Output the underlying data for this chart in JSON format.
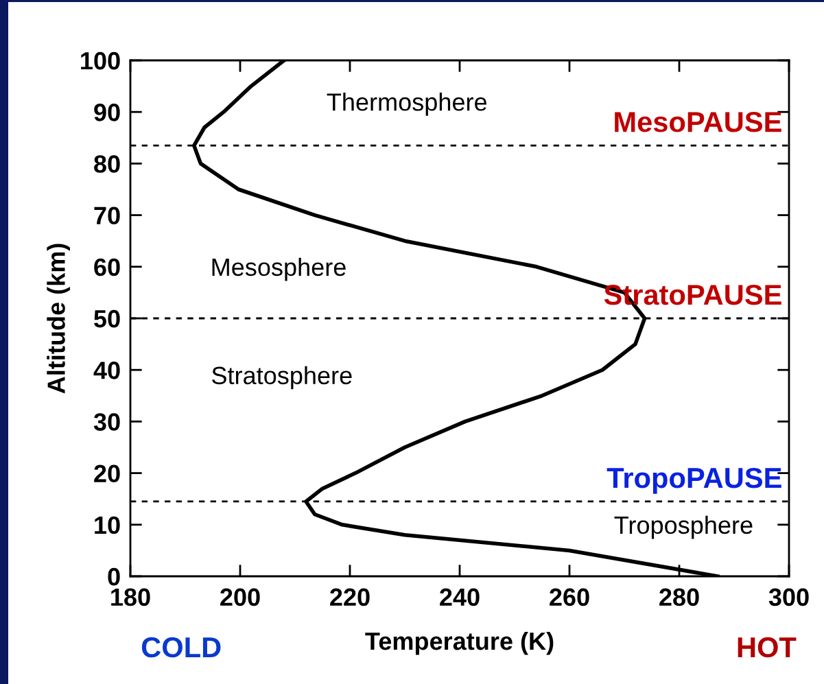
{
  "chart_data": {
    "type": "line",
    "xlabel": "Temperature (K)",
    "ylabel": "Altitude (km)",
    "xlim": [
      180,
      300
    ],
    "ylim": [
      0,
      100
    ],
    "xticks": [
      180,
      200,
      220,
      240,
      260,
      280,
      300
    ],
    "yticks": [
      0,
      10,
      20,
      30,
      40,
      50,
      60,
      70,
      80,
      90,
      100
    ],
    "series": [
      {
        "color": "#000000",
        "x": [
          287,
          260,
          230,
          218.6,
          213.6,
          212,
          215,
          221,
          230,
          241,
          255,
          266,
          272,
          273.7,
          270,
          254,
          230,
          213.6,
          199.7,
          192.8,
          191.6,
          193.5,
          197,
          202,
          208
        ],
        "values": [
          0,
          5,
          8,
          10,
          12,
          14.5,
          17,
          20,
          25,
          30,
          35,
          40,
          45,
          50,
          55,
          60,
          65,
          70,
          75,
          80,
          83.5,
          87,
          90,
          95,
          100
        ]
      }
    ],
    "ref_lines": [
      {
        "axis": "y",
        "value": 83.5,
        "label": "MesoPAUSE",
        "color": "#000000",
        "line_style": "dashed"
      },
      {
        "axis": "y",
        "value": 50,
        "label": "StratoPAUSE",
        "color": "#000000",
        "line_style": "dashed"
      },
      {
        "axis": "y",
        "value": 14.5,
        "label": "TropoPAUSE",
        "color": "#000000",
        "line_style": "dashed"
      }
    ],
    "annotations": [
      "Thermosphere",
      "Mesosphere",
      "Stratosphere",
      "Troposphere",
      "COLD",
      "HOT"
    ]
  }
}
